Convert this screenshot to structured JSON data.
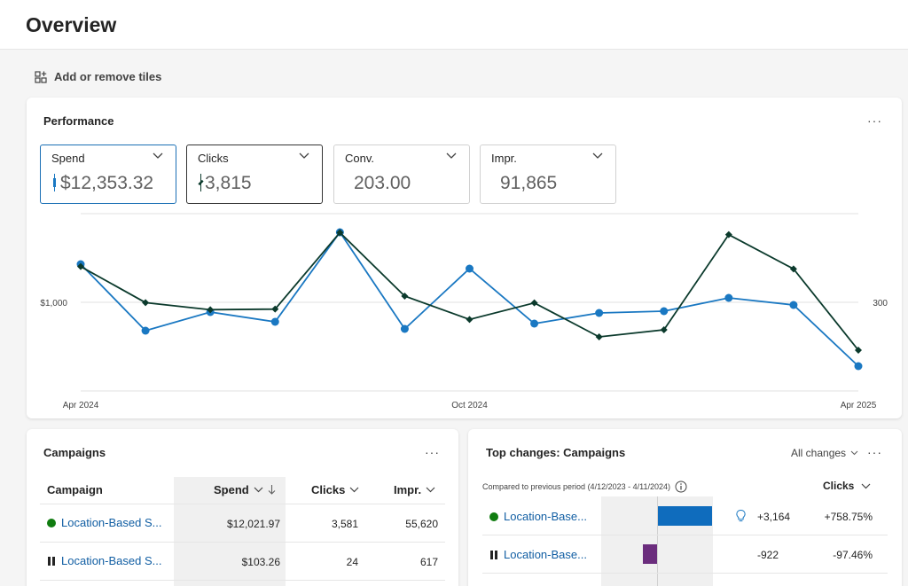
{
  "page": {
    "title": "Overview"
  },
  "toolbar": {
    "add_tiles_label": "Add or remove tiles",
    "add_tiles_icon": "add-tile-icon"
  },
  "performance": {
    "title": "Performance",
    "more_label": "···",
    "metrics": [
      {
        "label": "Spend",
        "value": "$12,353.32",
        "color": "#1a78c2"
      },
      {
        "label": "Clicks",
        "value": "3,815",
        "color": "#0b3a2c"
      },
      {
        "label": "Conv.",
        "value": "203.00"
      },
      {
        "label": "Impr.",
        "value": "91,865"
      }
    ]
  },
  "chart_data": {
    "type": "line",
    "x_tick_labels": [
      "Apr 2024",
      "Oct 2024",
      "Apr 2025"
    ],
    "y_left_tick": "$1,000",
    "y_right_tick": "300",
    "y_left_tick_value": 1000,
    "y_right_tick_value": 300,
    "grid": true,
    "x": [
      "Apr 2024",
      "May 2024",
      "Jun 2024",
      "Jul 2024",
      "Aug 2024",
      "Sep 2024",
      "Oct 2024",
      "Nov 2024",
      "Dec 2024",
      "Jan 2025",
      "Feb 2025",
      "Mar 2025",
      "Apr 2025"
    ],
    "series": [
      {
        "name": "Spend",
        "axis": "left",
        "color": "#1a78c2",
        "marker": "circle",
        "values": [
          1430,
          680,
          890,
          780,
          1790,
          700,
          1380,
          760,
          880,
          900,
          1050,
          970,
          280
        ]
      },
      {
        "name": "Clicks",
        "axis": "right",
        "color": "#0b3a2c",
        "marker": "diamond",
        "values": [
          421,
          299,
          275,
          277,
          536,
          321,
          242,
          298,
          183,
          207,
          529,
          413,
          138
        ]
      }
    ]
  },
  "campaigns": {
    "title": "Campaigns",
    "more_label": "···",
    "columns": [
      "Campaign",
      "Spend",
      "Clicks",
      "Impr."
    ],
    "rows": [
      {
        "status": "active",
        "name": "Location-Based S...",
        "spend": "$12,021.97",
        "clicks": "3,581",
        "impr": "55,620"
      },
      {
        "status": "paused",
        "name": "Location-Based S...",
        "spend": "$103.26",
        "clicks": "24",
        "impr": "617"
      }
    ]
  },
  "top_changes": {
    "title": "Top changes: Campaigns",
    "filter_label": "All changes",
    "more_label": "···",
    "period_note": "Compared to previous period (4/12/2023 - 4/11/2024)",
    "metric_label": "Clicks",
    "rows": [
      {
        "status": "active",
        "name": "Location-Base...",
        "change": "+3,164",
        "pct": "+758.75%",
        "direction": "up",
        "color": "#0f6cbd",
        "has_insight": true
      },
      {
        "status": "paused",
        "name": "Location-Base...",
        "change": "-922",
        "pct": "-97.46%",
        "direction": "down",
        "color": "#6b2d7d",
        "has_insight": false
      }
    ]
  }
}
